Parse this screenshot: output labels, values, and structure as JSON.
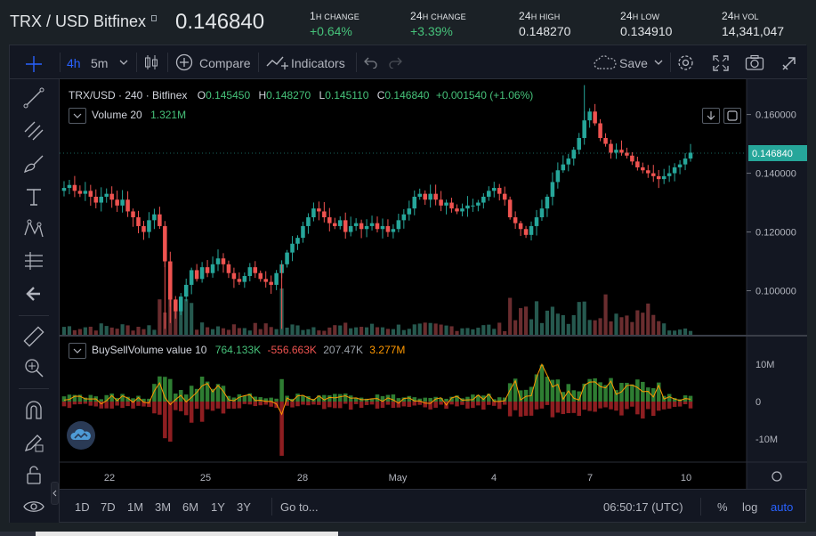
{
  "header": {
    "pair": "TRX / USD Bitfinex",
    "last_price": "0.146840",
    "stats": [
      {
        "label_big": "1",
        "label_small": "H CHANGE",
        "value": "+0.64%",
        "positive": true
      },
      {
        "label_big": "24",
        "label_small": "H CHANGE",
        "value": "+3.39%",
        "positive": true
      },
      {
        "label_big": "24",
        "label_small": "H HIGH",
        "value": "0.148270",
        "positive": false
      },
      {
        "label_big": "24",
        "label_small": "H LOW",
        "value": "0.134910",
        "positive": false
      },
      {
        "label_big": "24",
        "label_small": "H VOL",
        "value": "14,341,047",
        "positive": false
      }
    ]
  },
  "toolbar": {
    "interval_4h": "4h",
    "interval_5m": "5m",
    "compare": "Compare",
    "indicators": "Indicators",
    "save": "Save"
  },
  "legend": {
    "symbol": "TRX/USD · 240 · Bitfinex",
    "o_label": "O",
    "o_value": "0.145450",
    "h_label": "H",
    "h_value": "0.148270",
    "l_label": "L",
    "l_value": "0.145110",
    "c_label": "C",
    "c_value": "0.146840",
    "change": "+0.001540 (+1.06%)",
    "volume_name": "Volume 20",
    "volume_value": "1.321M",
    "bsv_name": "BuySellVolume value 10",
    "bsv_v1": "764.133K",
    "bsv_v2": "-556.663K",
    "bsv_v3": "207.47K",
    "bsv_v4": "3.277M"
  },
  "price_axis": {
    "labels": [
      "0.160000",
      "0.140000",
      "0.120000",
      "0.100000"
    ],
    "current": "0.146840"
  },
  "bsv_axis": {
    "labels": [
      "10M",
      "0",
      "-10M"
    ]
  },
  "time_axis": {
    "labels": [
      "22",
      "25",
      "28",
      "May",
      "4",
      "7",
      "10"
    ]
  },
  "bottom": {
    "ranges": [
      "1D",
      "7D",
      "1M",
      "3M",
      "6M",
      "1Y",
      "3Y"
    ],
    "goto": "Go to...",
    "clock": "06:50:17 (UTC)",
    "percent": "%",
    "log": "log",
    "auto": "auto"
  },
  "colors": {
    "up": "#26a69a",
    "down": "#ef5350",
    "accent": "#2962ff",
    "bsv_line": "#ff9800"
  },
  "chart_data": {
    "type": "candlestick",
    "interval": "240",
    "ylim": [
      0.085,
      0.172
    ],
    "x_ticks": [
      "22",
      "25",
      "28",
      "May",
      "4",
      "7",
      "10"
    ],
    "ohlc_close": [
      0.135,
      0.136,
      0.134,
      0.133,
      0.134,
      0.132,
      0.13,
      0.132,
      0.133,
      0.131,
      0.129,
      0.131,
      0.127,
      0.125,
      0.122,
      0.12,
      0.124,
      0.126,
      0.122,
      0.11,
      0.097,
      0.093,
      0.098,
      0.102,
      0.107,
      0.104,
      0.108,
      0.106,
      0.109,
      0.111,
      0.109,
      0.106,
      0.104,
      0.103,
      0.105,
      0.108,
      0.106,
      0.104,
      0.103,
      0.102,
      0.106,
      0.109,
      0.113,
      0.116,
      0.118,
      0.122,
      0.125,
      0.128,
      0.127,
      0.125,
      0.123,
      0.122,
      0.124,
      0.12,
      0.122,
      0.123,
      0.121,
      0.122,
      0.123,
      0.121,
      0.122,
      0.12,
      0.121,
      0.124,
      0.126,
      0.128,
      0.132,
      0.133,
      0.131,
      0.133,
      0.131,
      0.129,
      0.13,
      0.128,
      0.127,
      0.128,
      0.129,
      0.129,
      0.13,
      0.132,
      0.134,
      0.135,
      0.133,
      0.131,
      0.125,
      0.123,
      0.121,
      0.119,
      0.122,
      0.125,
      0.128,
      0.132,
      0.137,
      0.141,
      0.143,
      0.145,
      0.148,
      0.152,
      0.158,
      0.161,
      0.157,
      0.152,
      0.15,
      0.147,
      0.148,
      0.147,
      0.146,
      0.144,
      0.142,
      0.141,
      0.14,
      0.139,
      0.138,
      0.139,
      0.14,
      0.142,
      0.143,
      0.145,
      0.147
    ]
  }
}
